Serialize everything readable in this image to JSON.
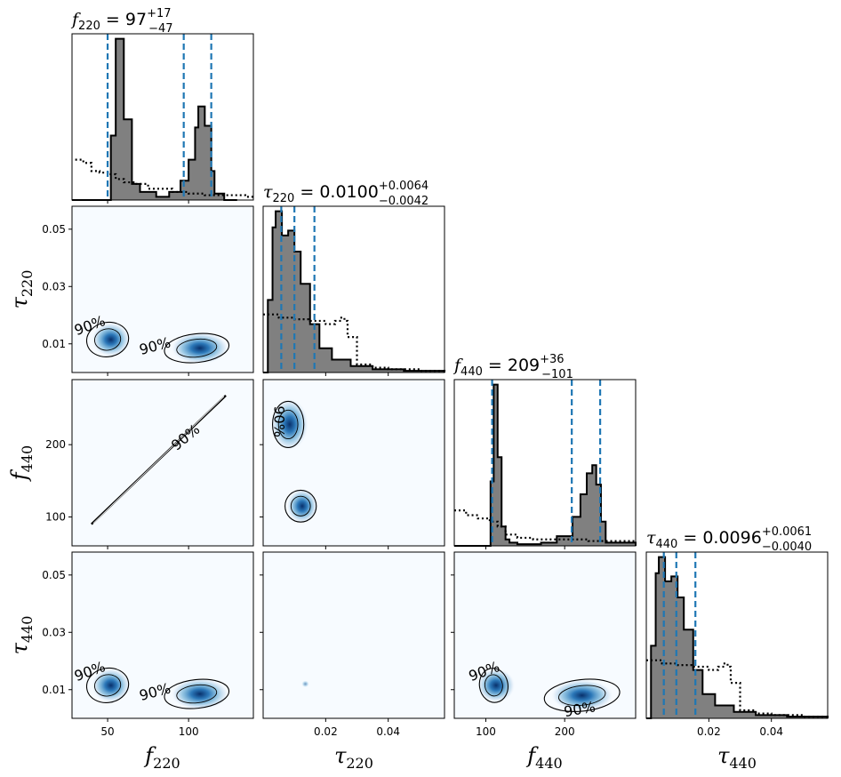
{
  "chart_data": {
    "type": "corner",
    "parameters": [
      {
        "symbol": "f",
        "subscript": "220",
        "range": [
          28,
          140
        ],
        "ticks": [
          50,
          100
        ],
        "tick_labels": [
          "50",
          "100"
        ],
        "title": {
          "prefix": "f",
          "sub": "220",
          "eq": " = 97",
          "sup": "+17",
          "low": "−47"
        },
        "quantiles": [
          50,
          97,
          114
        ],
        "hist_max": 1.0,
        "posterior_hist": {
          "x": [
            28,
            50,
            52,
            55,
            60,
            65,
            70,
            80,
            88,
            95,
            100,
            104,
            106,
            110,
            114,
            116,
            122,
            130
          ],
          "y": [
            0.0,
            0.0,
            0.4,
            1.0,
            0.5,
            0.1,
            0.05,
            0.02,
            0.05,
            0.12,
            0.25,
            0.45,
            0.58,
            0.46,
            0.18,
            0.04,
            0.0,
            0.0
          ]
        },
        "prior_hist": {
          "x": [
            30,
            35,
            40,
            45,
            50,
            55,
            60,
            66,
            75,
            90,
            100,
            110,
            115,
            125,
            135,
            140
          ],
          "y": [
            0.25,
            0.23,
            0.18,
            0.17,
            0.16,
            0.13,
            0.11,
            0.1,
            0.07,
            0.05,
            0.04,
            0.03,
            0.03,
            0.03,
            0.02,
            0.02
          ]
        }
      },
      {
        "symbol": "τ",
        "subscript": "220",
        "range": [
          0.0,
          0.058
        ],
        "ticks": [
          0.02,
          0.04
        ],
        "tick_labels": [
          "0.02",
          "0.04"
        ],
        "title": {
          "prefix": "τ",
          "sub": "220",
          "eq": " = 0.0100",
          "sup": "+0.0064",
          "low": "−0.0042"
        },
        "quantiles": [
          0.0058,
          0.01,
          0.0164
        ],
        "hist_max": 1.0,
        "posterior_hist": {
          "x": [
            0.0,
            0.0015,
            0.003,
            0.004,
            0.006,
            0.008,
            0.01,
            0.012,
            0.015,
            0.018,
            0.022,
            0.028,
            0.035,
            0.045,
            0.058
          ],
          "y": [
            0.0,
            0.45,
            0.9,
            1.0,
            0.85,
            0.88,
            0.75,
            0.55,
            0.3,
            0.15,
            0.08,
            0.04,
            0.02,
            0.01,
            0.0
          ]
        },
        "prior_hist": {
          "x": [
            0.0,
            0.005,
            0.01,
            0.015,
            0.02,
            0.023,
            0.025,
            0.026,
            0.027,
            0.03,
            0.035,
            0.04,
            0.05,
            0.058
          ],
          "y": [
            0.36,
            0.34,
            0.33,
            0.32,
            0.3,
            0.32,
            0.34,
            0.32,
            0.22,
            0.05,
            0.03,
            0.02,
            0.01,
            0.0
          ]
        }
      },
      {
        "symbol": "f",
        "subscript": "440",
        "range": [
          60,
          290
        ],
        "ticks": [
          100,
          200
        ],
        "tick_labels": [
          "100",
          "200"
        ],
        "title": {
          "prefix": "f",
          "sub": "440",
          "eq": " = 209",
          "sup": "+36",
          "low": "−101"
        },
        "quantiles": [
          108,
          209,
          245
        ],
        "hist_max": 1.0,
        "posterior_hist": {
          "x": [
            60,
            104,
            106,
            110,
            115,
            120,
            125,
            130,
            140,
            170,
            190,
            210,
            220,
            228,
            235,
            240,
            246,
            252,
            290
          ],
          "y": [
            0.0,
            0.0,
            0.4,
            1.0,
            0.55,
            0.12,
            0.04,
            0.02,
            0.01,
            0.02,
            0.06,
            0.18,
            0.32,
            0.45,
            0.5,
            0.38,
            0.15,
            0.02,
            0.0
          ]
        },
        "prior_hist": {
          "x": [
            60,
            75,
            90,
            105,
            115,
            125,
            140,
            160,
            190,
            210,
            230,
            250,
            270,
            290
          ],
          "y": [
            0.22,
            0.19,
            0.17,
            0.15,
            0.12,
            0.07,
            0.05,
            0.04,
            0.04,
            0.04,
            0.03,
            0.03,
            0.03,
            0.02
          ]
        }
      },
      {
        "symbol": "τ",
        "subscript": "440",
        "range": [
          0.0,
          0.058
        ],
        "ticks": [
          0.02,
          0.04
        ],
        "tick_labels": [
          "0.02",
          "0.04"
        ],
        "title": {
          "prefix": "τ",
          "sub": "440",
          "eq": " = 0.0096",
          "sup": "+0.0061",
          "low": "−0.0040"
        },
        "quantiles": [
          0.0056,
          0.0096,
          0.0157
        ],
        "hist_max": 1.0,
        "posterior_hist": {
          "x": [
            0.0,
            0.0015,
            0.003,
            0.004,
            0.006,
            0.008,
            0.01,
            0.012,
            0.015,
            0.018,
            0.022,
            0.028,
            0.035,
            0.045,
            0.058
          ],
          "y": [
            0.0,
            0.45,
            0.9,
            1.0,
            0.85,
            0.88,
            0.75,
            0.55,
            0.3,
            0.15,
            0.08,
            0.04,
            0.02,
            0.01,
            0.0
          ]
        },
        "prior_hist": {
          "x": [
            0.0,
            0.005,
            0.01,
            0.015,
            0.02,
            0.023,
            0.025,
            0.026,
            0.027,
            0.03,
            0.035,
            0.04,
            0.05,
            0.058
          ],
          "y": [
            0.36,
            0.34,
            0.33,
            0.32,
            0.3,
            0.32,
            0.34,
            0.32,
            0.22,
            0.05,
            0.03,
            0.02,
            0.01,
            0.0
          ]
        }
      }
    ],
    "row_ticks": {
      "1": {
        "ticks": [
          0.01,
          0.03,
          0.05
        ],
        "tick_labels": [
          "0.01",
          "0.03",
          "0.05"
        ]
      },
      "2": {
        "ticks": [
          100,
          200
        ],
        "tick_labels": [
          "100",
          "200"
        ]
      },
      "3": {
        "ticks": [
          0.01,
          0.03,
          0.05
        ],
        "tick_labels": [
          "0.01",
          "0.03",
          "0.05"
        ]
      }
    },
    "contour_level_label": "90%",
    "blobs": [
      {
        "panel": [
          1,
          0
        ],
        "cx": 52,
        "cy": 0.0115,
        "sx": 6,
        "sy": 0.003,
        "w": 1.0
      },
      {
        "panel": [
          1,
          0
        ],
        "cx": 107,
        "cy": 0.0085,
        "sx": 9,
        "sy": 0.0028,
        "w": 1.0
      },
      {
        "panel": [
          2,
          1
        ],
        "cx": 0.0085,
        "cy": 228,
        "sx": 0.003,
        "sy": 18,
        "w": 1.0
      },
      {
        "panel": [
          2,
          1
        ],
        "cx": 0.0125,
        "cy": 115,
        "sx": 0.0025,
        "sy": 12,
        "w": 1.0
      },
      {
        "panel": [
          3,
          0
        ],
        "cx": 52,
        "cy": 0.0115,
        "sx": 6,
        "sy": 0.003,
        "w": 1.0
      },
      {
        "panel": [
          3,
          0
        ],
        "cx": 107,
        "cy": 0.0085,
        "sx": 9,
        "sy": 0.0028,
        "w": 1.0
      },
      {
        "panel": [
          3,
          1
        ],
        "cx": 0.0135,
        "cy": 0.012,
        "sx": 0.0006,
        "sy": 0.0006,
        "w": 0.5
      },
      {
        "panel": [
          3,
          2
        ],
        "cx": 113,
        "cy": 0.0115,
        "sx": 12,
        "sy": 0.003,
        "w": 1.0
      },
      {
        "panel": [
          3,
          2
        ],
        "cx": 222,
        "cy": 0.008,
        "sx": 20,
        "sy": 0.0028,
        "w": 1.0
      }
    ],
    "contours": [
      {
        "panel": [
          1,
          0
        ],
        "cx": 50,
        "cy": 0.0115,
        "rx": 13,
        "ry": 0.006,
        "rot": -10,
        "label_at": [
          40,
          0.0148
        ],
        "label_rot": -20
      },
      {
        "panel": [
          1,
          0
        ],
        "cx": 105,
        "cy": 0.0085,
        "rx": 20,
        "ry": 0.005,
        "rot": -6,
        "label_at": [
          80,
          0.0076
        ],
        "label_rot": -15
      },
      {
        "panel": [
          2,
          1
        ],
        "cx": 0.008,
        "cy": 228,
        "rx": 0.005,
        "ry": 32,
        "rot": 0,
        "label_at": [
          0.0035,
          232
        ],
        "label_rot": 90
      },
      {
        "panel": [
          2,
          1
        ],
        "cx": 0.012,
        "cy": 115,
        "rx": 0.005,
        "ry": 22,
        "rot": 0,
        "label_at": null,
        "label_rot": 0
      },
      {
        "panel": [
          3,
          0
        ],
        "cx": 50,
        "cy": 0.0115,
        "rx": 13,
        "ry": 0.006,
        "rot": -10,
        "label_at": [
          40,
          0.0148
        ],
        "label_rot": -20
      },
      {
        "panel": [
          3,
          0
        ],
        "cx": 105,
        "cy": 0.0085,
        "rx": 20,
        "ry": 0.005,
        "rot": -6,
        "label_at": [
          80,
          0.0076
        ],
        "label_rot": -15
      },
      {
        "panel": [
          3,
          2
        ],
        "cx": 110,
        "cy": 0.0115,
        "rx": 18,
        "ry": 0.006,
        "rot": -10,
        "label_at": [
          100,
          0.0148
        ],
        "label_rot": -20
      },
      {
        "panel": [
          3,
          2
        ],
        "cx": 222,
        "cy": 0.008,
        "rx": 48,
        "ry": 0.0055,
        "rot": -6,
        "label_at": [
          220,
          0.0015
        ],
        "label_rot": -10
      }
    ],
    "lines": [
      {
        "panel": [
          2,
          0
        ],
        "from": [
          40,
          90
        ],
        "to": [
          123,
          268
        ]
      }
    ],
    "line_labels": [
      {
        "panel": [
          2,
          0
        ],
        "at": [
          100,
          205
        ],
        "rot": -40
      }
    ]
  }
}
